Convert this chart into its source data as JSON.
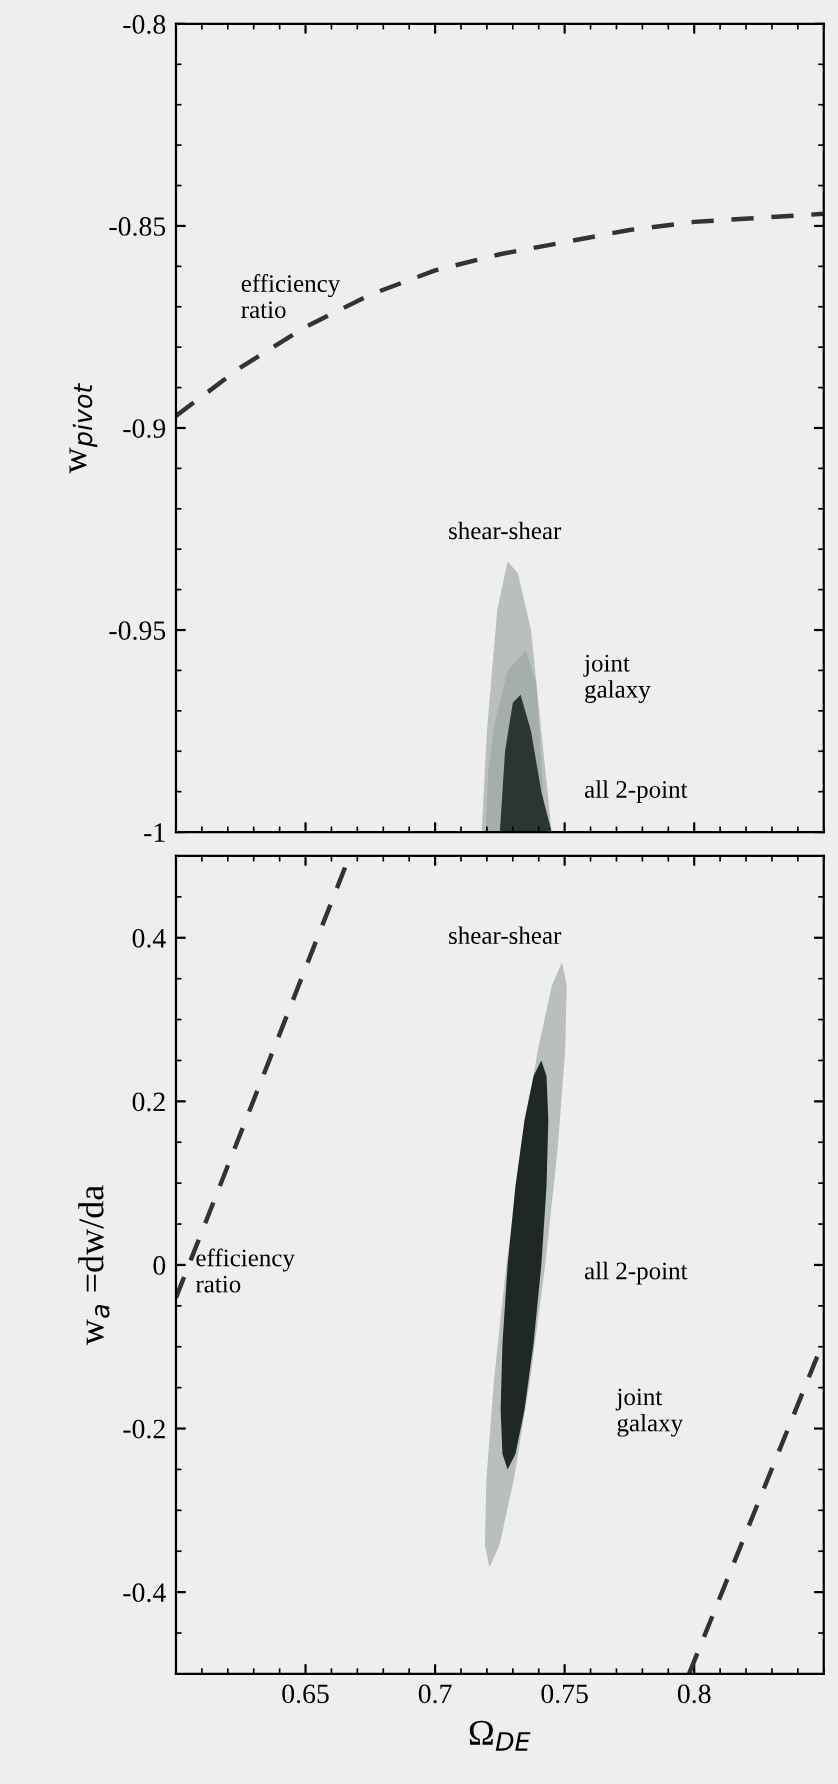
{
  "chart_data": [
    {
      "type": "area",
      "ylabel": "w$_{pivot}$",
      "xlim": [
        0.6,
        0.85
      ],
      "xticks": [
        0.65,
        0.7,
        0.75,
        0.8
      ],
      "ylim": [
        -1,
        -0.8
      ],
      "yticks": [
        -1,
        -0.95,
        -0.9,
        -0.85,
        -0.8
      ],
      "tick_labels": "y",
      "grid": false,
      "legend": false,
      "series": [
        {
          "type": "line",
          "line_style": "dashed",
          "color": "#333333",
          "x": [
            0.6,
            0.625,
            0.65,
            0.675,
            0.7,
            0.725,
            0.75,
            0.775,
            0.8,
            0.825,
            0.85
          ],
          "values": [
            -0.897,
            -0.885,
            -0.875,
            -0.867,
            -0.861,
            -0.857,
            -0.854,
            -0.851,
            -0.849,
            -0.848,
            -0.847
          ]
        },
        {
          "color": "#b9bebe",
          "x": [
            0.718,
            0.72,
            0.724,
            0.728,
            0.732,
            0.737,
            0.741,
            0.745
          ],
          "values": [
            -1,
            -0.975,
            -0.945,
            -0.933,
            -0.936,
            -0.95,
            -0.975,
            -1
          ]
        },
        {
          "color": "#a6adad",
          "x": [
            0.7195,
            0.7205,
            0.723,
            0.728,
            0.735,
            0.739,
            0.741,
            0.7425
          ],
          "values": [
            -1,
            -0.985,
            -0.973,
            -0.96,
            -0.955,
            -0.963,
            -0.982,
            -1
          ]
        },
        {
          "color": "#2b3533",
          "x": [
            0.725,
            0.727,
            0.73,
            0.733,
            0.737,
            0.741,
            0.745
          ],
          "values": [
            -1,
            -0.98,
            -0.968,
            -0.966,
            -0.975,
            -0.99,
            -1
          ]
        }
      ],
      "annotations": [
        "efficiency\nratio",
        "shear-shear",
        "joint\ngalaxy",
        "all 2-point"
      ]
    },
    {
      "type": "area",
      "xlabel": "Ω$_{DE}$",
      "ylabel": "w$_{a}$ =dw/da",
      "xlim": [
        0.6,
        0.85
      ],
      "xticks": [
        0.65,
        0.7,
        0.75,
        0.8
      ],
      "ylim": [
        -0.5,
        0.5
      ],
      "yticks": [
        -0.4,
        -0.2,
        0,
        0.2,
        0.4
      ],
      "grid": false,
      "legend": false,
      "series": [
        {
          "type": "line",
          "line_style": "dashed",
          "color": "#333333",
          "x": [
            0.6,
            0.667
          ],
          "values": [
            -0.04,
            0.5
          ]
        },
        {
          "type": "line",
          "line_style": "dashed",
          "color": "#333333",
          "x": [
            0.798,
            0.849
          ],
          "values": [
            -0.5,
            -0.1
          ]
        },
        {
          "color": "#b9bebe",
          "x": [
            0.749,
            0.7508,
            0.7502,
            0.7473,
            0.7425,
            0.7366,
            0.7304,
            0.7249,
            0.721,
            0.7192,
            0.7198,
            0.7227,
            0.7275,
            0.7334,
            0.7396,
            0.7451
          ],
          "values": [
            0.37,
            0.342,
            0.262,
            0.142,
            0.0,
            -0.142,
            -0.262,
            -0.342,
            -0.37,
            -0.342,
            -0.262,
            -0.142,
            0.0,
            0.142,
            0.262,
            0.342
          ]
        },
        {
          "color": "#1f2826",
          "x": [
            0.741,
            0.743,
            0.7437,
            0.743,
            0.741,
            0.738,
            0.7345,
            0.731,
            0.728,
            0.726,
            0.7253,
            0.726,
            0.728,
            0.731,
            0.7345,
            0.738
          ],
          "values": [
            0.25,
            0.231,
            0.177,
            0.096,
            0.0,
            -0.096,
            -0.177,
            -0.231,
            -0.25,
            -0.231,
            -0.177,
            -0.096,
            0.0,
            0.096,
            0.177,
            0.231
          ]
        }
      ],
      "annotations": [
        "shear-shear",
        "efficiency\nratio",
        "all 2-point",
        "joint\ngalaxy"
      ]
    }
  ]
}
